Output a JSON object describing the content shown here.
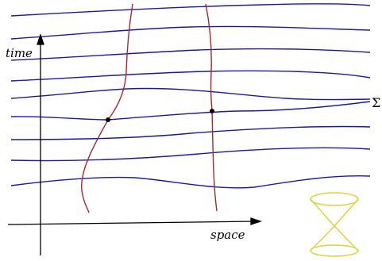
{
  "labels": {
    "time": "time",
    "space": "space",
    "sigma": "Σ"
  },
  "colors": {
    "slices": "#1a1aa0",
    "worldlines": "#a8282d",
    "axes": "#000000",
    "light_cone": "#e3cf3c",
    "events": "#000000"
  },
  "icons": {
    "light_cone": "light-cone-icon"
  }
}
